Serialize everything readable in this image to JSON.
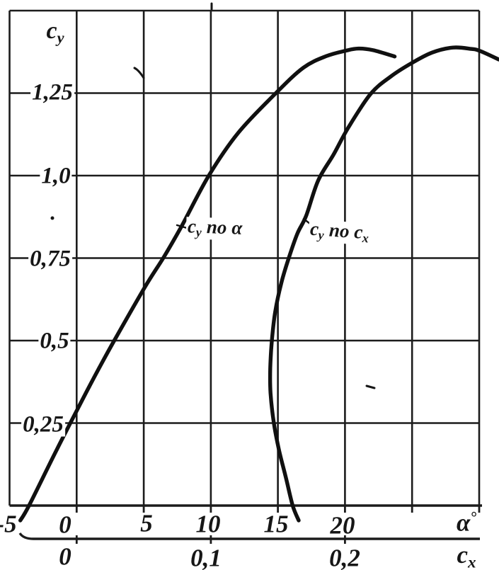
{
  "labels": {
    "y_axis_title": {
      "base": "c",
      "sub": "y"
    },
    "y_ticks": [
      "1,25",
      "1,0",
      "0,75",
      "0,5",
      "0,25"
    ],
    "alpha_ticks": [
      "-5",
      "0",
      "5",
      "10",
      "15",
      "20"
    ],
    "alpha_symbol": {
      "base": "α",
      "sup": "°"
    },
    "cx_ticks": [
      "0",
      "0,1",
      "0,2"
    ],
    "cx_symbol": {
      "base": "c",
      "sub": "x"
    },
    "curve_lift": {
      "base": "c",
      "sub": "y",
      "mid": "по",
      "arg": "α"
    },
    "curve_polar": {
      "base": "c",
      "sub": "y",
      "mid": "по",
      "arg_base": "c",
      "arg_sub": "x"
    }
  },
  "chart_data": {
    "type": "line",
    "title": "",
    "grid": true,
    "legend_position": "inline-curve-labels",
    "y_axis": {
      "label": "cy",
      "min": 0,
      "max": 1.5,
      "grid_step": 0.25,
      "tick_labels": [
        1.25,
        1.0,
        0.75,
        0.5,
        0.25
      ]
    },
    "x_axis_alpha": {
      "label": "α°",
      "min": -5,
      "max": 30,
      "grid_step": 5,
      "tick_labels": [
        -5,
        0,
        5,
        10,
        15,
        20
      ]
    },
    "x_axis_cx": {
      "label": "cx",
      "min": -0.05,
      "max": 0.3,
      "grid_step": 0.05,
      "tick_labels": [
        0,
        0.1,
        0.2
      ]
    },
    "series": [
      {
        "name": "cy по α",
        "x_scale": "alpha",
        "points": [
          [
            -4.2,
            -0.045
          ],
          [
            -3.55,
            0.0
          ],
          [
            -1.5,
            0.168
          ],
          [
            0.0,
            0.287
          ],
          [
            1.4,
            0.396
          ],
          [
            2.8,
            0.5
          ],
          [
            5.1,
            0.663
          ],
          [
            6.45,
            0.75
          ],
          [
            7.8,
            0.845
          ],
          [
            9.85,
            1.0
          ],
          [
            12.05,
            1.13
          ],
          [
            14.85,
            1.25
          ],
          [
            16.9,
            1.327
          ],
          [
            18.6,
            1.362
          ],
          [
            20.1,
            1.379
          ],
          [
            21.0,
            1.385
          ],
          [
            22.1,
            1.38
          ],
          [
            23.7,
            1.361
          ]
        ]
      },
      {
        "name": "cy по cx",
        "x_scale": "cx",
        "points": [
          [
            0.1655,
            -0.045
          ],
          [
            0.161,
            0.0
          ],
          [
            0.156,
            0.084
          ],
          [
            0.151,
            0.165
          ],
          [
            0.147,
            0.249
          ],
          [
            0.1445,
            0.341
          ],
          [
            0.1443,
            0.416
          ],
          [
            0.1455,
            0.5
          ],
          [
            0.148,
            0.588
          ],
          [
            0.1525,
            0.674
          ],
          [
            0.158,
            0.749
          ],
          [
            0.1645,
            0.824
          ],
          [
            0.171,
            0.878
          ],
          [
            0.18,
            0.985
          ],
          [
            0.1915,
            1.064
          ],
          [
            0.2025,
            1.146
          ],
          [
            0.219,
            1.247
          ],
          [
            0.234,
            1.3
          ],
          [
            0.2505,
            1.343
          ],
          [
            0.265,
            1.373
          ],
          [
            0.2805,
            1.388
          ],
          [
            0.294,
            1.384
          ],
          [
            0.3005,
            1.378
          ],
          [
            0.3145,
            1.352
          ]
        ]
      }
    ]
  }
}
